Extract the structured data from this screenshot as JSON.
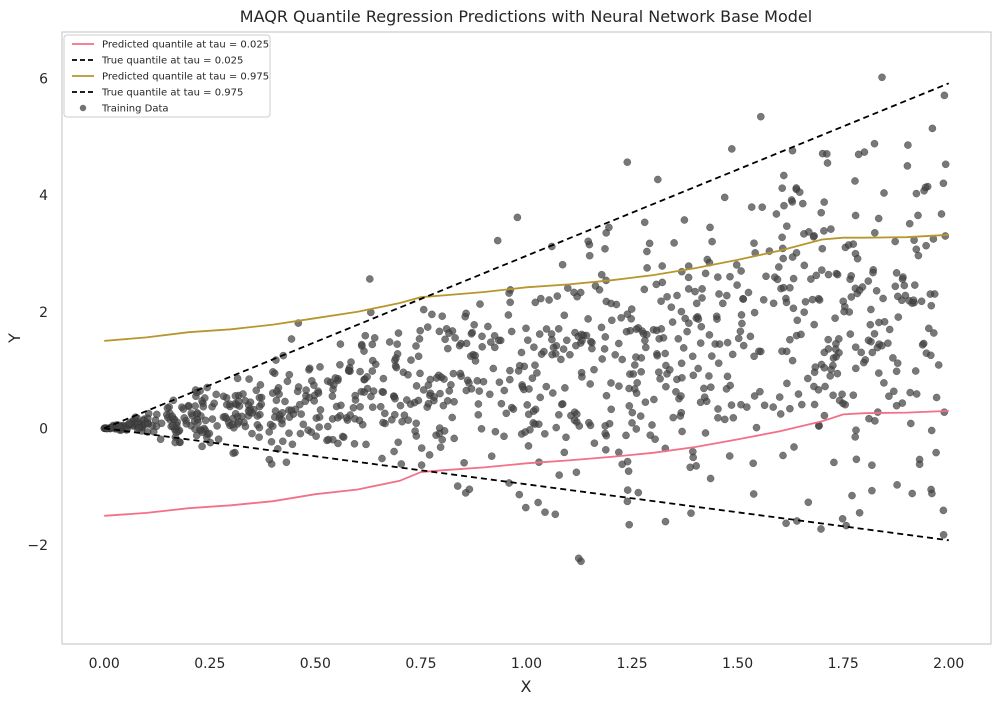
{
  "chart_data": {
    "type": "scatter",
    "title": "MAQR Quantile Regression Predictions with Neural Network Base Model",
    "xlabel": "X",
    "ylabel": "Y",
    "xlim": [
      -0.1,
      2.1
    ],
    "ylim": [
      -3.7,
      6.8
    ],
    "x_ticks": [
      0.0,
      0.25,
      0.5,
      0.75,
      1.0,
      1.25,
      1.5,
      1.75,
      2.0
    ],
    "x_tick_labels": [
      "0.00",
      "0.25",
      "0.50",
      "0.75",
      "1.00",
      "1.25",
      "1.50",
      "1.75",
      "2.00"
    ],
    "y_ticks": [
      -2,
      0,
      2,
      4,
      6
    ],
    "y_tick_labels": [
      "−2",
      "0",
      "2",
      "4",
      "6"
    ],
    "grid": false,
    "legend_position": "top-left",
    "series": [
      {
        "name": "Predicted quantile at tau = 0.025",
        "kind": "line",
        "color": "#f37088",
        "dashed": false,
        "x": [
          0.0,
          0.1,
          0.2,
          0.3,
          0.4,
          0.5,
          0.6,
          0.7,
          0.75,
          0.8,
          0.9,
          1.0,
          1.1,
          1.2,
          1.3,
          1.4,
          1.5,
          1.6,
          1.7,
          1.75,
          1.8,
          1.9,
          2.0
        ],
        "y": [
          -1.5,
          -1.45,
          -1.37,
          -1.32,
          -1.25,
          -1.13,
          -1.05,
          -0.9,
          -0.75,
          -0.72,
          -0.67,
          -0.6,
          -0.55,
          -0.49,
          -0.42,
          -0.32,
          -0.19,
          -0.05,
          0.12,
          0.24,
          0.26,
          0.27,
          0.3
        ]
      },
      {
        "name": "True quantile at tau = 0.025",
        "kind": "line",
        "color": "#000000",
        "dashed": true,
        "x": [
          0.0,
          2.0
        ],
        "y": [
          0.0,
          -1.92
        ]
      },
      {
        "name": "Predicted quantile at tau = 0.975",
        "kind": "line",
        "color": "#b8962d",
        "dashed": false,
        "x": [
          0.0,
          0.1,
          0.2,
          0.3,
          0.4,
          0.5,
          0.6,
          0.7,
          0.75,
          0.8,
          0.9,
          1.0,
          1.1,
          1.2,
          1.3,
          1.4,
          1.5,
          1.6,
          1.7,
          1.75,
          1.8,
          1.9,
          2.0
        ],
        "y": [
          1.5,
          1.56,
          1.65,
          1.7,
          1.78,
          1.89,
          2.0,
          2.15,
          2.25,
          2.28,
          2.34,
          2.42,
          2.47,
          2.54,
          2.63,
          2.75,
          2.89,
          3.05,
          3.24,
          3.27,
          3.27,
          3.28,
          3.32
        ]
      },
      {
        "name": "True quantile at tau = 0.975",
        "kind": "line",
        "color": "#000000",
        "dashed": true,
        "x": [
          0.0,
          2.0
        ],
        "y": [
          0.0,
          5.92
        ]
      },
      {
        "name": "Training Data",
        "kind": "scatter",
        "color": "#444444",
        "count": 1000,
        "x_range": [
          0.0,
          2.0
        ],
        "y_center_slope": 0.93,
        "y_spread_slope": 0.95,
        "seed": 7
      }
    ]
  }
}
